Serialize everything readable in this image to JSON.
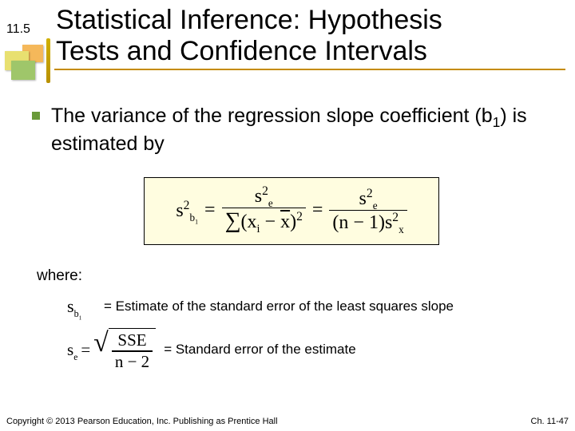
{
  "header": {
    "section_number": "11.5",
    "title_line1": "Statistical Inference: Hypothesis",
    "title_line2": "Tests and Confidence Intervals",
    "rule_color": "#c58b00",
    "deco_colors": {
      "yellow": "#e8e070",
      "orange": "#f5b85a",
      "green": "#9fc66a"
    }
  },
  "bullet": {
    "color": "#6a9a3a",
    "text_prefix": "The variance of the regression slope coefficient (b",
    "subscript": "1",
    "text_suffix": ") is estimated by"
  },
  "formula": {
    "lhs_base": "s",
    "lhs_sup": "2",
    "lhs_sub": "b",
    "lhs_subsub": "1",
    "num_base": "s",
    "num_sup": "2",
    "num_sub": "e",
    "den1_sigma": "∑",
    "den1_open": "(x",
    "den1_i": "i",
    "den1_mid": " − ",
    "den1_xbar": "x",
    "den1_close": ")",
    "den1_sq": "2",
    "den2_open": "(n − 1)s",
    "den2_sup": "2",
    "den2_sub": "x",
    "eq": "=",
    "box_bg": "#fffde0"
  },
  "where_label": "where:",
  "def1": {
    "sym_base": "s",
    "sym_sub": "b",
    "sym_subsub": "1",
    "text": "= Estimate of the standard error of the least squares slope"
  },
  "def2": {
    "sym_base": "s",
    "sym_sub": "e",
    "eq": "=",
    "sqrt_num": "SSE",
    "sqrt_den": "n − 2",
    "text": "= Standard error of the estimate"
  },
  "footer": {
    "left": "Copyright © 2013 Pearson Education, Inc. Publishing as Prentice Hall",
    "right": "Ch. 11-47"
  }
}
